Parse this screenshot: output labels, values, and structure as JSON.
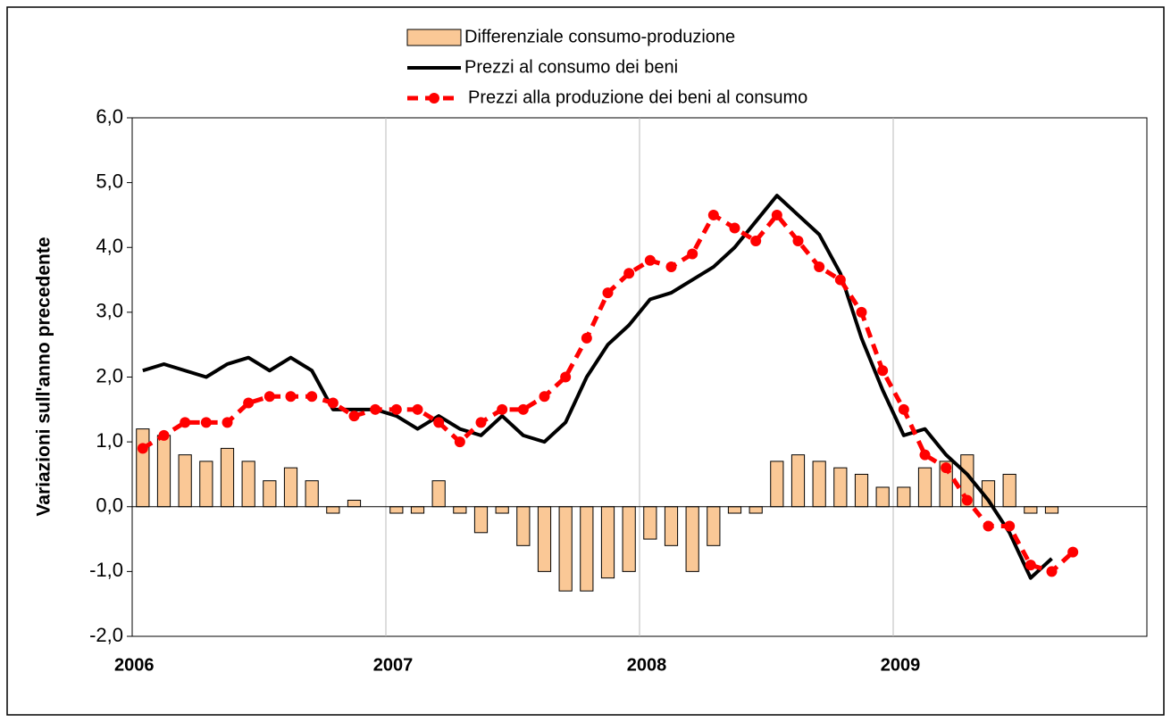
{
  "chart_data": {
    "type": "bar_line",
    "y_axis_label": "Variazioni sull'anno precedente",
    "categories": [
      "2006",
      null,
      null,
      null,
      null,
      null,
      null,
      null,
      null,
      null,
      null,
      null,
      "2007",
      null,
      null,
      null,
      null,
      null,
      null,
      null,
      null,
      null,
      null,
      null,
      "2008",
      null,
      null,
      null,
      null,
      null,
      null,
      null,
      null,
      null,
      null,
      null,
      "2009",
      null,
      null,
      null,
      null,
      null,
      null,
      null,
      null,
      null,
      null,
      null
    ],
    "series": [
      {
        "name": "Differenziale consumo-produzione",
        "kind": "bar",
        "color": "#fac896",
        "values": [
          1.2,
          1.1,
          0.8,
          0.7,
          0.9,
          0.7,
          0.4,
          0.6,
          0.4,
          -0.1,
          0.1,
          0.0,
          -0.1,
          -0.1,
          0.4,
          -0.1,
          -0.4,
          -0.1,
          -0.6,
          -1.0,
          -1.3,
          -1.3,
          -1.1,
          -1.0,
          -0.5,
          -0.6,
          -1.0,
          -0.6,
          -0.1,
          -0.1,
          0.7,
          0.8,
          0.7,
          0.6,
          0.5,
          0.3,
          0.3,
          0.6,
          0.7,
          0.8,
          0.4,
          0.5,
          -0.1,
          -0.1,
          null,
          null,
          null,
          null
        ]
      },
      {
        "name": "Prezzi al consumo dei beni",
        "kind": "line",
        "color": "#000000",
        "values": [
          2.1,
          2.2,
          2.1,
          2.0,
          2.2,
          2.3,
          2.1,
          2.3,
          2.1,
          1.5,
          1.5,
          1.5,
          1.4,
          1.2,
          1.4,
          1.2,
          1.1,
          1.4,
          1.1,
          1.0,
          1.3,
          2.0,
          2.5,
          2.8,
          3.2,
          3.3,
          3.5,
          3.7,
          4.0,
          4.4,
          4.8,
          4.5,
          4.2,
          3.6,
          2.6,
          1.8,
          1.1,
          1.2,
          0.8,
          0.5,
          0.1,
          -0.4,
          -1.1,
          -0.8,
          null,
          null,
          null,
          null
        ]
      },
      {
        "name": "Prezzi alla produzione dei beni al consumo",
        "kind": "dashed-dots",
        "color": "#ff0000",
        "values": [
          0.9,
          1.1,
          1.3,
          1.3,
          1.3,
          1.6,
          1.7,
          1.7,
          1.7,
          1.6,
          1.4,
          1.5,
          1.5,
          1.5,
          1.3,
          1.0,
          1.3,
          1.5,
          1.5,
          1.7,
          2.0,
          2.6,
          3.3,
          3.6,
          3.8,
          3.7,
          3.9,
          4.5,
          4.3,
          4.1,
          4.5,
          4.1,
          3.7,
          3.5,
          3.0,
          2.1,
          1.5,
          0.8,
          0.6,
          0.1,
          -0.3,
          -0.3,
          -0.9,
          -1.0,
          -0.7,
          null,
          null,
          null
        ]
      }
    ],
    "ylim": [
      -2,
      6
    ],
    "yticks": [
      {
        "value": -2,
        "label": "-2,0"
      },
      {
        "value": -1,
        "label": "-1,0"
      },
      {
        "value": 0,
        "label": "0,0"
      },
      {
        "value": 1,
        "label": "1,0"
      },
      {
        "value": 2,
        "label": "2,0"
      },
      {
        "value": 3,
        "label": "3,0"
      },
      {
        "value": 4,
        "label": "4,0"
      },
      {
        "value": 5,
        "label": "5,0"
      },
      {
        "value": 6,
        "label": "6,0"
      }
    ],
    "legend": "top"
  }
}
